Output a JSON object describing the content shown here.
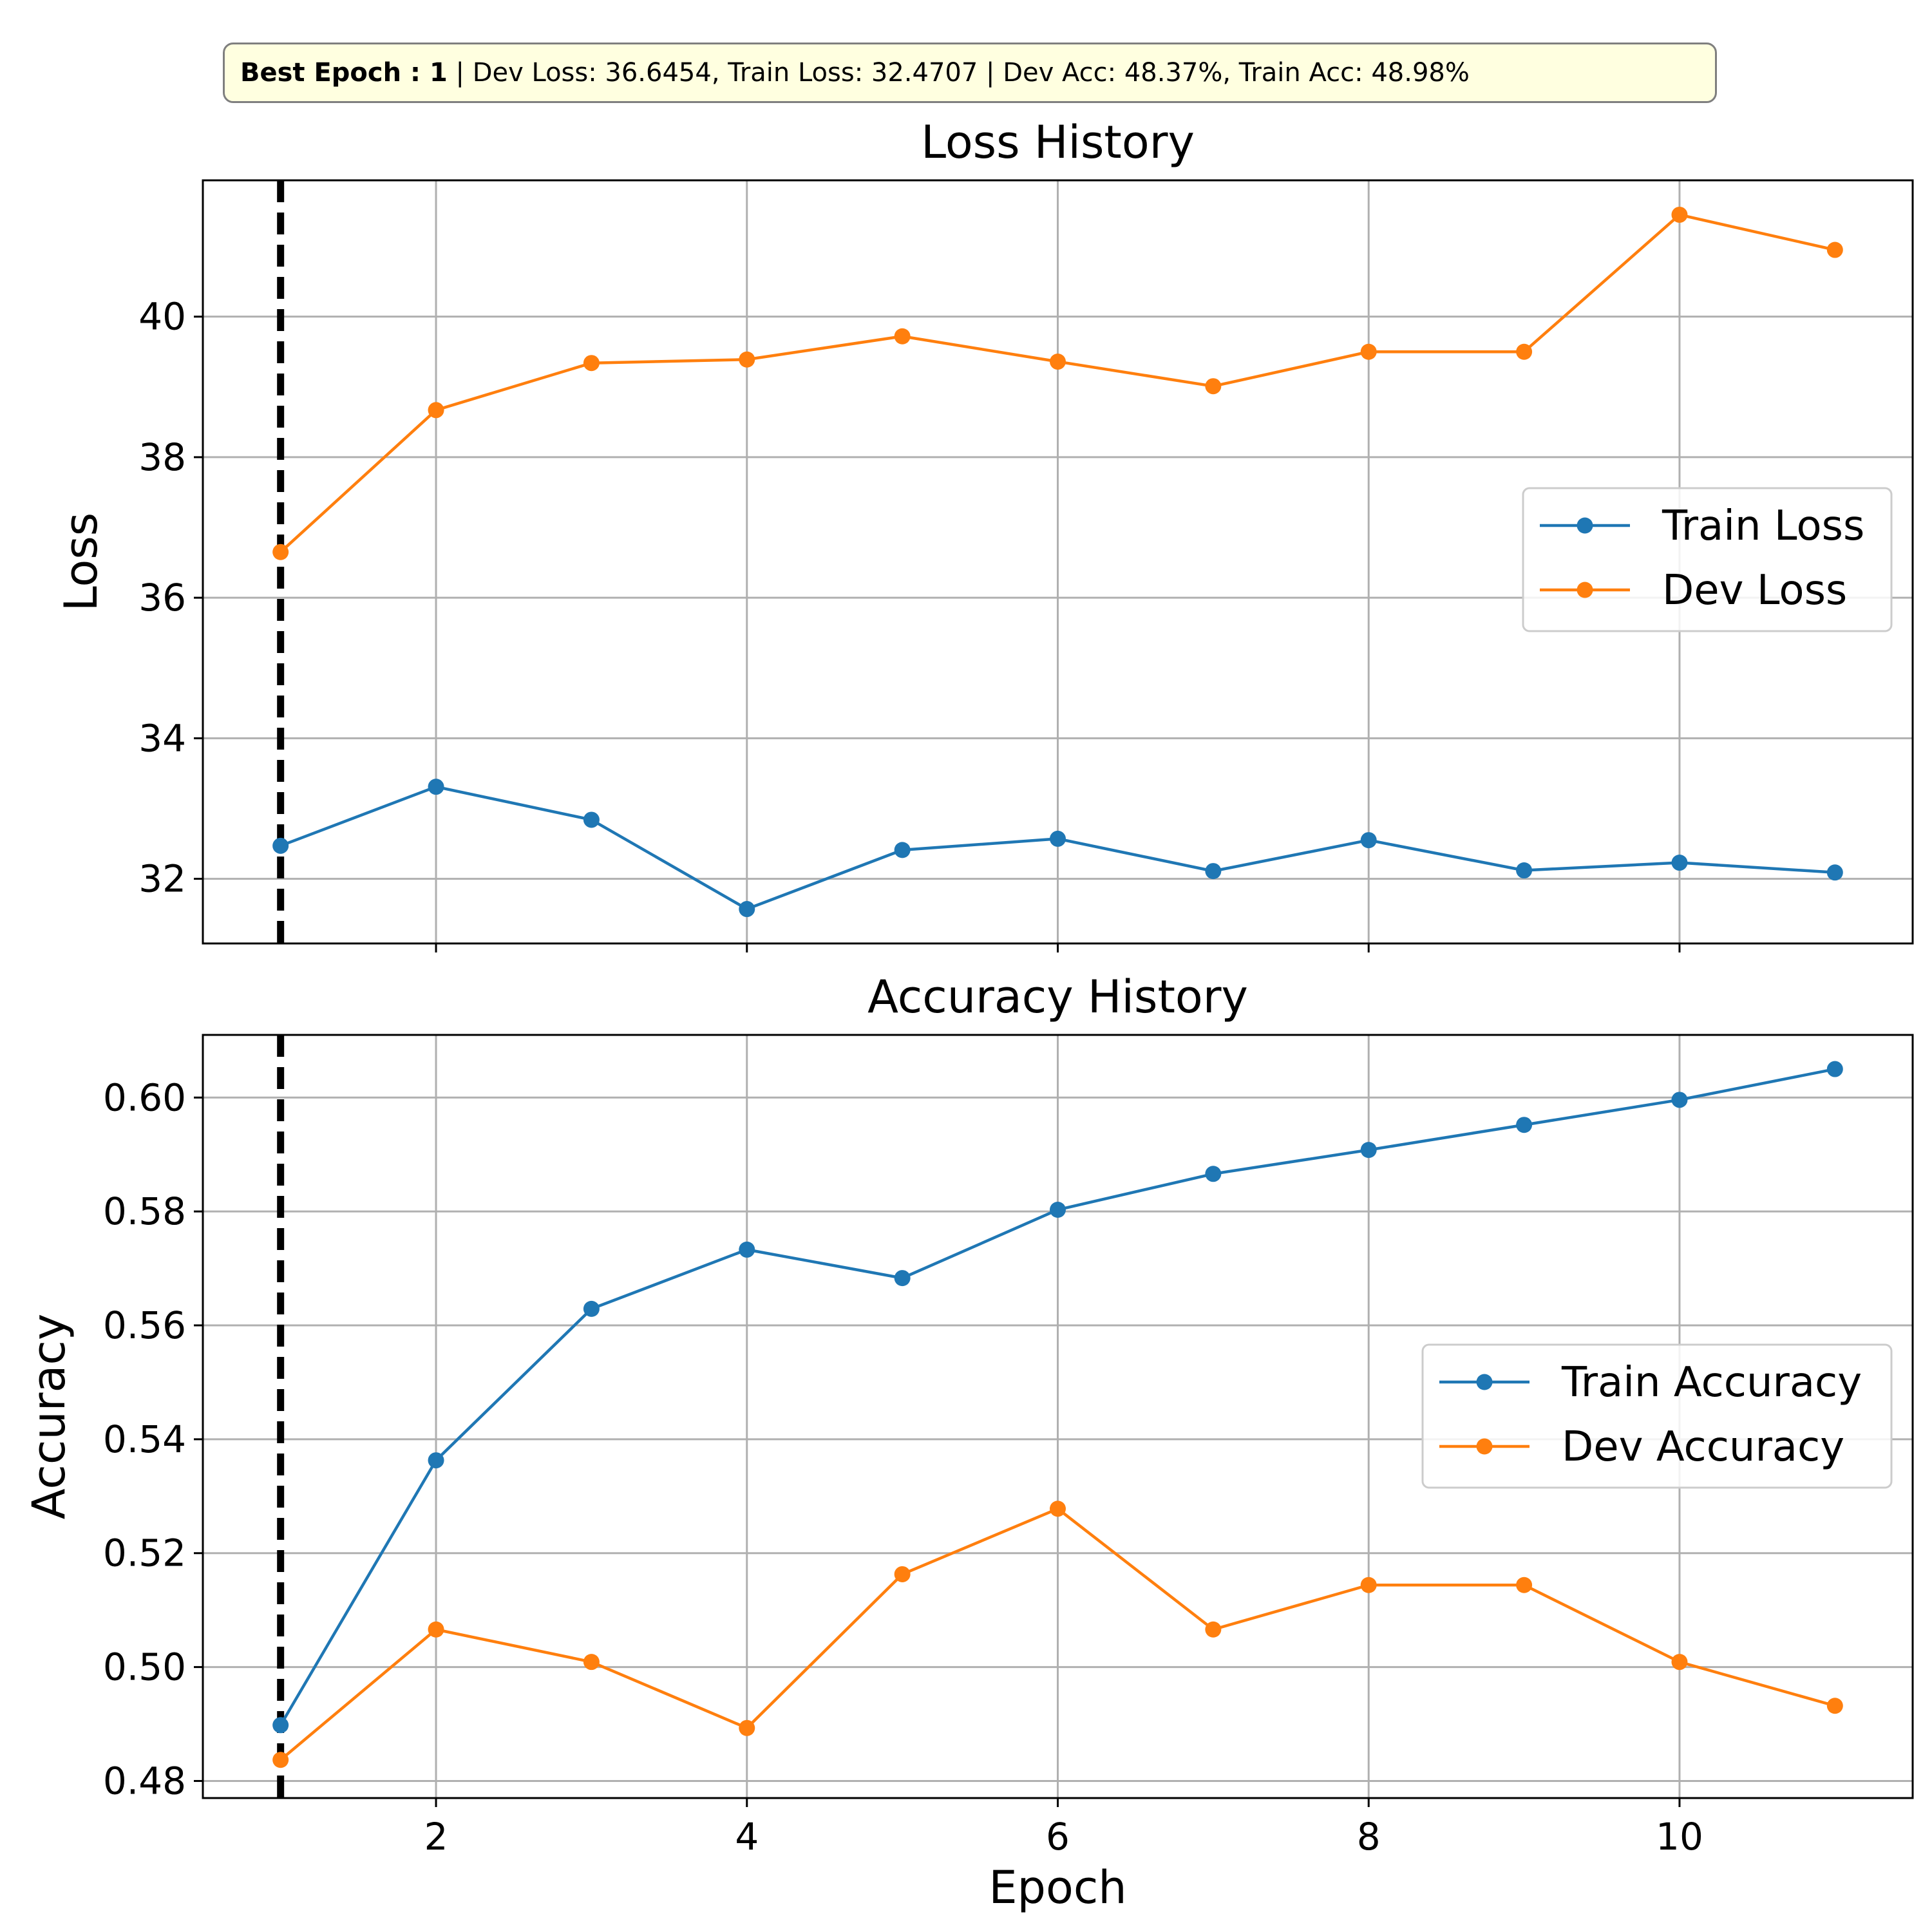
{
  "banner": {
    "best_label": "Best Epoch : 1",
    "sep1": "  |  ",
    "dev_loss": "Dev Loss: 36.6454",
    "mid": ", ",
    "train_loss": "Train Loss: 32.4707",
    "sep2": "  |  ",
    "dev_acc": "Dev Acc: 48.37%",
    "train_acc": "Train Acc: 48.98%"
  },
  "colors": {
    "train": "#1f77b4",
    "dev": "#ff7f0e",
    "grid": "#b0b0b0",
    "best_line": "#000000"
  },
  "chart_data": [
    {
      "type": "line",
      "title": "Loss History",
      "xlabel": "",
      "ylabel": "Loss",
      "x": [
        1,
        2,
        3,
        4,
        5,
        6,
        7,
        8,
        9,
        10,
        11
      ],
      "xlim": [
        0.5,
        11.5
      ],
      "ylim": [
        31.08,
        41.94
      ],
      "xticks": [
        2,
        4,
        6,
        8,
        10
      ],
      "yticks": [
        32,
        34,
        36,
        38,
        40
      ],
      "ytick_labels": [
        "32",
        "34",
        "36",
        "38",
        "40"
      ],
      "show_xtick_labels": false,
      "grid": true,
      "best_epoch": 1,
      "legend_position": "right",
      "series": [
        {
          "name": "Train Loss",
          "color_key": "train",
          "values": [
            32.47,
            33.31,
            32.84,
            31.57,
            32.41,
            32.57,
            32.11,
            32.55,
            32.12,
            32.23,
            32.09
          ]
        },
        {
          "name": "Dev Loss",
          "color_key": "dev",
          "values": [
            36.65,
            38.67,
            39.34,
            39.39,
            39.72,
            39.36,
            39.01,
            39.5,
            39.5,
            41.45,
            40.95
          ]
        }
      ]
    },
    {
      "type": "line",
      "title": "Accuracy History",
      "xlabel": "Epoch",
      "ylabel": "Accuracy",
      "x": [
        1,
        2,
        3,
        4,
        5,
        6,
        7,
        8,
        9,
        10,
        11
      ],
      "xlim": [
        0.5,
        11.5
      ],
      "ylim": [
        0.477,
        0.611
      ],
      "xticks": [
        2,
        4,
        6,
        8,
        10
      ],
      "xtick_labels": [
        "2",
        "4",
        "6",
        "8",
        "10"
      ],
      "yticks": [
        0.48,
        0.5,
        0.52,
        0.54,
        0.56,
        0.58,
        0.6
      ],
      "ytick_labels": [
        "0.48",
        "0.50",
        "0.52",
        "0.54",
        "0.56",
        "0.58",
        "0.60"
      ],
      "show_xtick_labels": true,
      "grid": true,
      "best_epoch": 1,
      "legend_position": "right",
      "series": [
        {
          "name": "Train Accuracy",
          "color_key": "train",
          "values": [
            0.4898,
            0.5363,
            0.5629,
            0.5733,
            0.5683,
            0.5803,
            0.5866,
            0.5908,
            0.5952,
            0.5996,
            0.605
          ]
        },
        {
          "name": "Dev Accuracy",
          "color_key": "dev",
          "values": [
            0.4837,
            0.5066,
            0.5009,
            0.4893,
            0.5163,
            0.5278,
            0.5066,
            0.5144,
            0.5144,
            0.5009,
            0.4932
          ]
        }
      ]
    }
  ]
}
